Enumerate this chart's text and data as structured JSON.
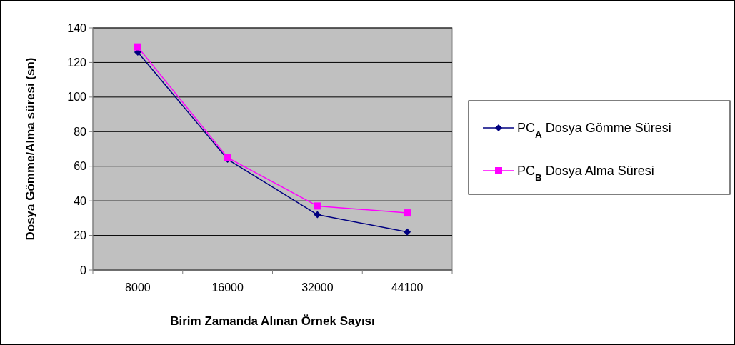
{
  "chart_data": {
    "type": "line",
    "xlabel": "Birim Zamanda Alınan Örnek Sayısı",
    "ylabel": "Dosya Gömme/Alma süresi (sn)",
    "categories": [
      "8000",
      "16000",
      "32000",
      "44100"
    ],
    "series": [
      {
        "name": "PC$_{A}$ Dosya Gömme Süresi",
        "color": "#000080",
        "marker": "diamond",
        "values": [
          126,
          64,
          32,
          22
        ]
      },
      {
        "name": "PC$_{B}$ Dosya Alma Süresi",
        "color": "#ff00ff",
        "marker": "square",
        "values": [
          129,
          65,
          37,
          33
        ]
      }
    ],
    "ylim": [
      0,
      140
    ],
    "yticks": [
      0,
      20,
      40,
      60,
      80,
      100,
      120,
      140
    ],
    "grid": "y",
    "legend": "right"
  }
}
